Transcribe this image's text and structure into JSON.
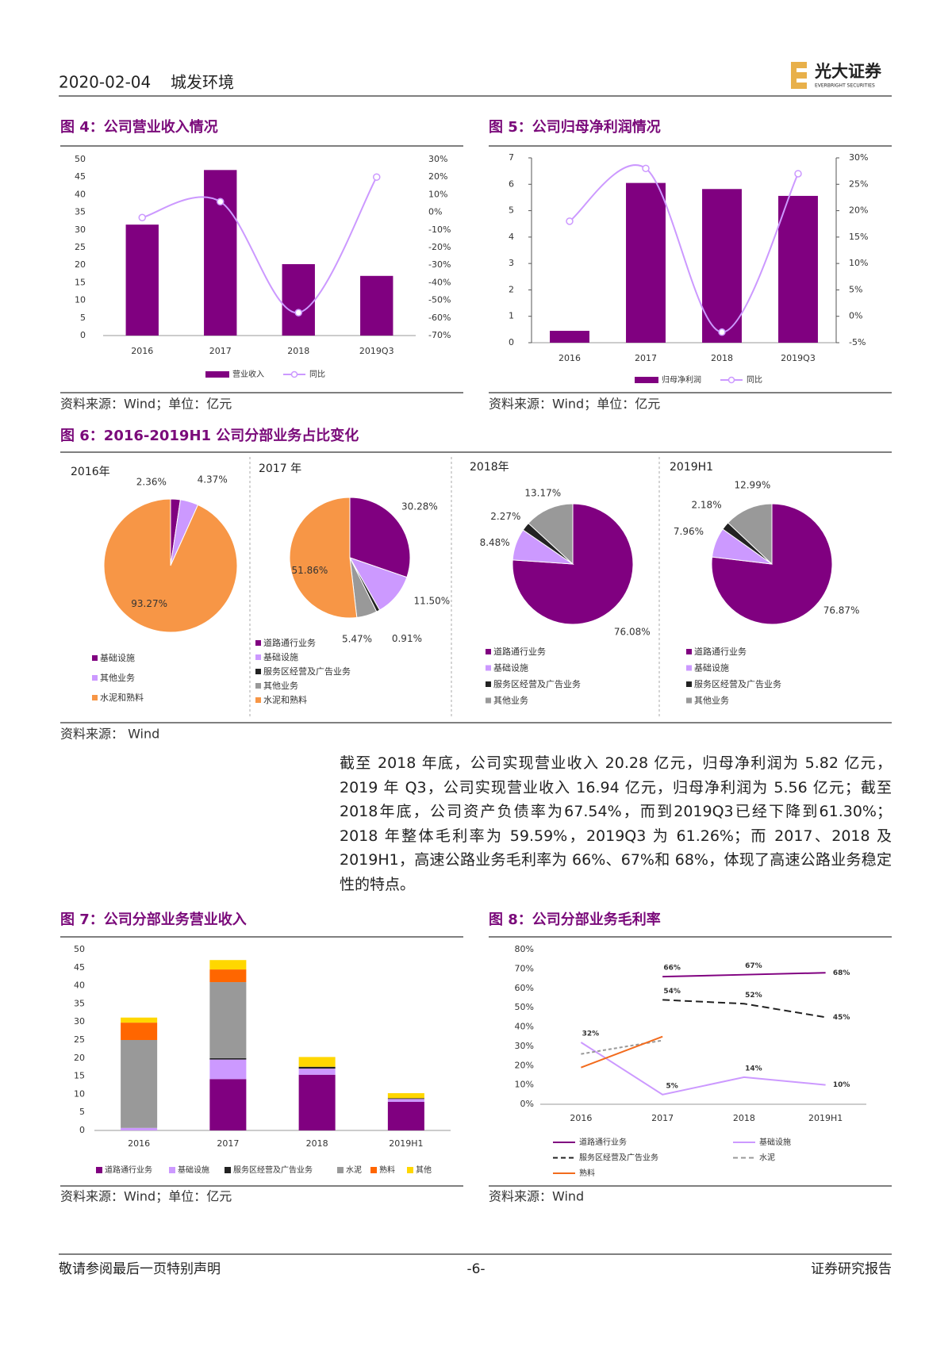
{
  "header": {
    "date": "2020-02-04",
    "company": "城发环境",
    "logo_name": "光大证券",
    "logo_subtitle": "EVERBRIGHT SECURITIES"
  },
  "figures": [
    {
      "title": "图 4：公司营业收入情况",
      "source": "资料来源：Wind；单位：亿元",
      "chart_data": {
        "type": "bar_line",
        "categories": [
          "2016",
          "2017",
          "2018",
          "2019Q3"
        ],
        "series": [
          {
            "name": "营业收入",
            "type": "bar",
            "color": "#800080",
            "values": [
              31.5,
              47,
              20.28,
              16.94
            ]
          },
          {
            "name": "同比",
            "type": "line",
            "axis": "y2",
            "color": "#CC99FF",
            "values": [
              -3,
              6,
              -57,
              20
            ]
          }
        ],
        "ylim": [
          0,
          50
        ],
        "yticks": [
          0,
          5,
          10,
          15,
          20,
          25,
          30,
          35,
          40,
          45,
          50
        ],
        "y2lim": [
          -70,
          30
        ],
        "y2ticks": [
          {
            "value": -70,
            "label": "-70%"
          },
          {
            "value": -60,
            "label": "-60%"
          },
          {
            "value": -50,
            "label": "-50%"
          },
          {
            "value": -40,
            "label": "-40%"
          },
          {
            "value": -30,
            "label": "-30%"
          },
          {
            "value": -20,
            "label": "-20%"
          },
          {
            "value": -10,
            "label": "-10%"
          },
          {
            "value": 0,
            "label": "0%"
          },
          {
            "value": 10,
            "label": "10%"
          },
          {
            "value": 20,
            "label": "20%"
          },
          {
            "value": 30,
            "label": "30%"
          }
        ]
      }
    },
    {
      "title": "图 5：公司归母净利润情况",
      "source": "资料来源：Wind；单位：亿元",
      "chart_data": {
        "type": "bar_line",
        "categories": [
          "2016",
          "2017",
          "2018",
          "2019Q3"
        ],
        "series": [
          {
            "name": "归母净利润",
            "type": "bar",
            "color": "#800080",
            "values": [
              0.45,
              6.05,
              5.82,
              5.56
            ]
          },
          {
            "name": "同比",
            "type": "line",
            "axis": "y2",
            "color": "#CC99FF",
            "values": [
              18,
              28,
              -3,
              27
            ]
          }
        ],
        "ylim": [
          0,
          7
        ],
        "yticks": [
          0,
          1,
          2,
          3,
          4,
          5,
          6,
          7
        ],
        "y2lim": [
          -5,
          30
        ],
        "y2ticks": [
          {
            "value": -5,
            "label": "-5%"
          },
          {
            "value": 0,
            "label": "0%"
          },
          {
            "value": 5,
            "label": "5%"
          },
          {
            "value": 10,
            "label": "10%"
          },
          {
            "value": 15,
            "label": "15%"
          },
          {
            "value": 20,
            "label": "20%"
          },
          {
            "value": 25,
            "label": "25%"
          },
          {
            "value": 30,
            "label": "30%"
          }
        ]
      }
    },
    {
      "title": "图 6：2016-2019H1 公司分部业务占比变化",
      "source": "资料来源： Wind",
      "chart_data": [
        {
          "type": "pie",
          "title": "2016年",
          "categories": [
            "基础设施",
            "其他业务",
            "水泥和熟料"
          ],
          "values": [
            2.36,
            4.37,
            93.27
          ],
          "value_labels": [
            "2.36%",
            "4.37%",
            "93.27%"
          ],
          "colors": [
            "#800080",
            "#CC99FF",
            "#F79646"
          ]
        },
        {
          "type": "pie",
          "title": "2017 年",
          "categories": [
            "道路通行业务",
            "基础设施",
            "服务区经营及广告业务",
            "其他业务",
            "水泥和熟料"
          ],
          "values": [
            30.28,
            11.5,
            0.91,
            5.47,
            51.86
          ],
          "value_labels": [
            "30.28%",
            "11.50%",
            "0.91%",
            "5.47%",
            "51.86%"
          ],
          "colors": [
            "#800080",
            "#CC99FF",
            "#222222",
            "#999999",
            "#F79646"
          ]
        },
        {
          "type": "pie",
          "title": "2018年",
          "categories": [
            "道路通行业务",
            "基础设施",
            "服务区经营及广告业务",
            "其他业务"
          ],
          "values": [
            76.08,
            8.48,
            2.27,
            13.17
          ],
          "value_labels": [
            "76.08%",
            "8.48%",
            "2.27%",
            "13.17%"
          ],
          "colors": [
            "#800080",
            "#CC99FF",
            "#222222",
            "#999999"
          ]
        },
        {
          "type": "pie",
          "title": "2019H1",
          "categories": [
            "道路通行业务",
            "基础设施",
            "服务区经营及广告业务",
            "其他业务"
          ],
          "values": [
            76.87,
            7.96,
            2.18,
            12.99
          ],
          "value_labels": [
            "76.87%",
            "7.96%",
            "2.18%",
            "12.99%"
          ],
          "colors": [
            "#800080",
            "#CC99FF",
            "#222222",
            "#999999"
          ]
        }
      ]
    },
    {
      "title": "图 7：公司分部业务营业收入",
      "source": "资料来源：Wind；单位：亿元",
      "chart_data": {
        "type": "stacked_bar",
        "categories": [
          "2016",
          "2017",
          "2018",
          "2019H1"
        ],
        "series": [
          {
            "name": "道路通行业务",
            "color": "#800080",
            "values": [
              0,
              14.2,
              15.4,
              7.9
            ]
          },
          {
            "name": "基础设施",
            "color": "#CC99FF",
            "values": [
              0.7,
              5.4,
              1.7,
              0.8
            ]
          },
          {
            "name": "服务区经营及广告业务",
            "color": "#222222",
            "values": [
              0,
              0.4,
              0.5,
              0.2
            ]
          },
          {
            "name": "水泥",
            "color": "#999999",
            "values": [
              24.3,
              21,
              0,
              0
            ]
          },
          {
            "name": "熟料",
            "color": "#FF6600",
            "values": [
              4.8,
              3.5,
              0,
              0
            ]
          },
          {
            "name": "其他",
            "color": "#FFD700",
            "values": [
              1.4,
              2.6,
              2.7,
              1.4
            ]
          }
        ],
        "ylim": [
          0,
          50
        ],
        "yticks": [
          0,
          5,
          10,
          15,
          20,
          25,
          30,
          35,
          40,
          45,
          50
        ]
      }
    },
    {
      "title": "图 8：公司分部业务毛利率",
      "source": "资料来源：Wind",
      "chart_data": {
        "type": "line",
        "categories": [
          "2016",
          "2017",
          "2018",
          "2019H1"
        ],
        "series": [
          {
            "name": "道路通行业务",
            "color": "#800080",
            "values": [
              null,
              66,
              67,
              68
            ],
            "value_labels": [
              null,
              "66%",
              "67%",
              "68%"
            ]
          },
          {
            "name": "基础设施",
            "color": "#CC99FF",
            "values": [
              32,
              5,
              14,
              10
            ],
            "value_labels": [
              "32%",
              "5%",
              "14%",
              "10%"
            ]
          },
          {
            "name": "服务区经营及广告业务",
            "color": "#222222",
            "line_style": "dashed",
            "values": [
              null,
              54,
              52,
              45
            ],
            "value_labels": [
              null,
              "54%",
              "52%",
              "45%"
            ]
          },
          {
            "name": "水泥",
            "color": "#999999",
            "line_style": "dashed",
            "values": [
              26,
              33,
              null,
              null
            ]
          },
          {
            "name": "熟料",
            "color": "#F26B1D",
            "values": [
              19,
              35,
              null,
              null
            ]
          }
        ],
        "ylim": [
          0,
          80
        ],
        "yticks": [
          {
            "value": 0,
            "label": "0%"
          },
          {
            "value": 10,
            "label": "10%"
          },
          {
            "value": 20,
            "label": "20%"
          },
          {
            "value": 30,
            "label": "30%"
          },
          {
            "value": 40,
            "label": "40%"
          },
          {
            "value": 50,
            "label": "50%"
          },
          {
            "value": 60,
            "label": "60%"
          },
          {
            "value": 70,
            "label": "70%"
          },
          {
            "value": 80,
            "label": "80%"
          }
        ]
      }
    }
  ],
  "paragraph": "截至 2018 年底，公司实现营业收入 20.28 亿元，归母净利润为 5.82 亿元，2019 年 Q3，公司实现营业收入 16.94 亿元，归母净利润为 5.56 亿元；截至2018年底，公司资产负债率为67.54%，而到2019Q3已经下降到61.30%；2018 年整体毛利率为 59.59%，2019Q3 为 61.26%；而 2017、2018 及 2019H1，高速公路业务毛利率为 66%、67%和 68%，体现了高速公路业务稳定性的特点。",
  "footer": {
    "left": "敬请参阅最后一页特别声明",
    "page": "-6-",
    "right": "证券研究报告"
  }
}
